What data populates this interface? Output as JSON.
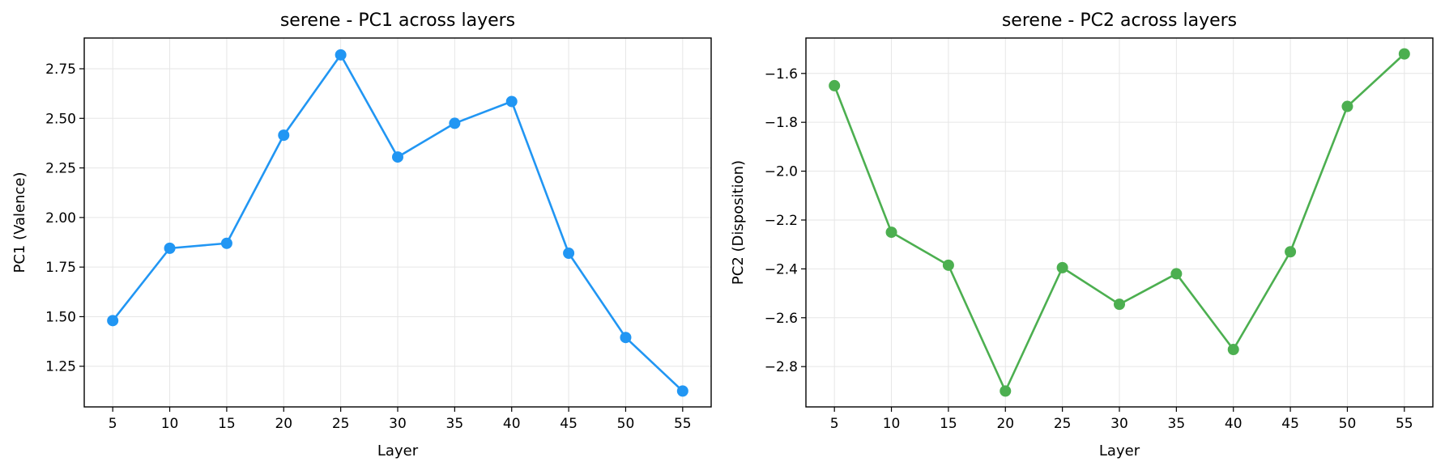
{
  "chart_data": [
    {
      "type": "line",
      "title": "serene - PC1 across layers",
      "xlabel": "Layer",
      "ylabel": "PC1 (Valence)",
      "color": "#2196f3",
      "x": [
        5,
        10,
        15,
        20,
        25,
        30,
        35,
        40,
        45,
        50,
        55
      ],
      "values": [
        1.48,
        1.845,
        1.87,
        2.415,
        2.82,
        2.305,
        2.475,
        2.585,
        1.82,
        1.395,
        1.125
      ],
      "xlim": [
        2.5,
        57.5
      ],
      "ylim": [
        1.045,
        2.905
      ],
      "xticks": [
        5,
        10,
        15,
        20,
        25,
        30,
        35,
        40,
        45,
        50,
        55
      ],
      "xtick_labels": [
        "5",
        "10",
        "15",
        "20",
        "25",
        "30",
        "35",
        "40",
        "45",
        "50",
        "55"
      ],
      "yticks": [
        1.25,
        1.5,
        1.75,
        2.0,
        2.25,
        2.5,
        2.75
      ],
      "ytick_labels": [
        "1.25",
        "1.50",
        "1.75",
        "2.00",
        "2.25",
        "2.50",
        "2.75"
      ],
      "grid": true
    },
    {
      "type": "line",
      "title": "serene - PC2 across layers",
      "xlabel": "Layer",
      "ylabel": "PC2 (Disposition)",
      "color": "#4caf50",
      "x": [
        5,
        10,
        15,
        20,
        25,
        30,
        35,
        40,
        45,
        50,
        55
      ],
      "values": [
        -1.65,
        -2.25,
        -2.385,
        -2.9,
        -2.395,
        -2.545,
        -2.42,
        -2.73,
        -2.33,
        -1.735,
        -1.52
      ],
      "xlim": [
        2.5,
        57.5
      ],
      "ylim": [
        -2.965,
        -1.455
      ],
      "xticks": [
        5,
        10,
        15,
        20,
        25,
        30,
        35,
        40,
        45,
        50,
        55
      ],
      "xtick_labels": [
        "5",
        "10",
        "15",
        "20",
        "25",
        "30",
        "35",
        "40",
        "45",
        "50",
        "55"
      ],
      "yticks": [
        -2.8,
        -2.6,
        -2.4,
        -2.2,
        -2.0,
        -1.8,
        -1.6
      ],
      "ytick_labels": [
        "−2.8",
        "−2.6",
        "−2.4",
        "−2.2",
        "−2.0",
        "−1.8",
        "−1.6"
      ],
      "grid": true
    }
  ]
}
